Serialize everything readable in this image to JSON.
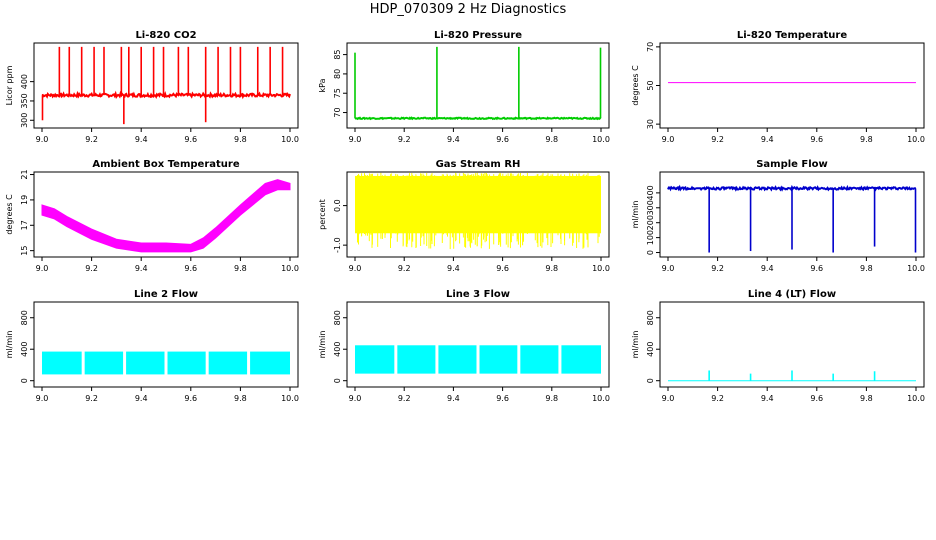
{
  "title": "HDP_070309  2 Hz Diagnostics",
  "chart_data": [
    {
      "type": "line",
      "title": "Li-820 CO2",
      "xlabel": "",
      "ylabel": "Licor ppm",
      "xlim": [
        9.0,
        10.0
      ],
      "ylim": [
        280,
        500
      ],
      "x_ticks": [
        "9.0",
        "9.2",
        "9.4",
        "9.6",
        "9.8",
        "10.0"
      ],
      "y_ticks": [
        "300",
        "350",
        "400"
      ],
      "color": "#ff0000",
      "series": [
        {
          "baseline": 365,
          "noise": 4,
          "spikes": [
            [
              9.07,
              490
            ],
            [
              9.11,
              490
            ],
            [
              9.16,
              490
            ],
            [
              9.21,
              490
            ],
            [
              9.25,
              490
            ],
            [
              9.32,
              490
            ],
            [
              9.35,
              490
            ],
            [
              9.4,
              490
            ],
            [
              9.45,
              490
            ],
            [
              9.49,
              490
            ],
            [
              9.55,
              490
            ],
            [
              9.59,
              490
            ],
            [
              9.66,
              490
            ],
            [
              9.71,
              490
            ],
            [
              9.76,
              490
            ],
            [
              9.8,
              490
            ],
            [
              9.87,
              490
            ],
            [
              9.92,
              490
            ],
            [
              9.97,
              490
            ],
            [
              9.002,
              300
            ],
            [
              9.33,
              290
            ],
            [
              9.66,
              295
            ]
          ]
        }
      ]
    },
    {
      "type": "line",
      "title": "Li-820 Pressure",
      "xlabel": "",
      "ylabel": "kPa",
      "xlim": [
        9.0,
        10.0
      ],
      "ylim": [
        66,
        88
      ],
      "x_ticks": [
        "9.0",
        "9.2",
        "9.4",
        "9.6",
        "9.8",
        "10.0"
      ],
      "y_ticks": [
        "70",
        "75",
        "80",
        "85"
      ],
      "color": "#00cc00",
      "series": [
        {
          "baseline": 68.5,
          "noise": 0.15,
          "spikes": [
            [
              9.0,
              85.5
            ],
            [
              9.333,
              87
            ],
            [
              9.666,
              87
            ],
            [
              9.998,
              86.8
            ]
          ]
        }
      ]
    },
    {
      "type": "line",
      "title": "Li-820 Temperature",
      "xlabel": "",
      "ylabel": "degrees C",
      "xlim": [
        9.0,
        10.0
      ],
      "ylim": [
        28,
        72
      ],
      "x_ticks": [
        "9.0",
        "9.2",
        "9.4",
        "9.6",
        "9.8",
        "10.0"
      ],
      "y_ticks": [
        "30",
        "50",
        "70"
      ],
      "color": "#ff00ff",
      "series": [
        {
          "baseline": 51.5,
          "noise": 0,
          "spikes": []
        }
      ]
    },
    {
      "type": "area",
      "title": "Ambient Box Temperature",
      "xlabel": "",
      "ylabel": "degrees C",
      "xlim": [
        9.0,
        10.0
      ],
      "ylim": [
        14.5,
        21.2
      ],
      "x_ticks": [
        "9.0",
        "9.2",
        "9.4",
        "9.6",
        "9.8",
        "10.0"
      ],
      "y_ticks": [
        "15",
        "17",
        "19",
        "21"
      ],
      "color": "#ff00ff",
      "series": [
        {
          "band": [
            [
              9.0,
              17.8,
              18.6
            ],
            [
              9.05,
              17.5,
              18.3
            ],
            [
              9.1,
              16.9,
              17.7
            ],
            [
              9.2,
              15.9,
              16.7
            ],
            [
              9.3,
              15.2,
              15.9
            ],
            [
              9.4,
              14.9,
              15.6
            ],
            [
              9.5,
              14.9,
              15.6
            ],
            [
              9.6,
              14.9,
              15.5
            ],
            [
              9.65,
              15.2,
              16.0
            ],
            [
              9.7,
              16.0,
              16.8
            ],
            [
              9.8,
              17.8,
              18.6
            ],
            [
              9.9,
              19.4,
              20.3
            ],
            [
              9.95,
              19.8,
              20.6
            ],
            [
              10.0,
              19.8,
              20.3
            ]
          ]
        }
      ]
    },
    {
      "type": "area",
      "title": "Gas Stream RH",
      "xlabel": "",
      "ylabel": "percent",
      "xlim": [
        9.0,
        10.0
      ],
      "ylim": [
        -1.3,
        0.85
      ],
      "x_ticks": [
        "9.0",
        "9.2",
        "9.4",
        "9.6",
        "9.8",
        "10.0"
      ],
      "y_ticks": [
        "-1.0",
        "0.0"
      ],
      "color": "#ffff00",
      "series": [
        {
          "band_const": [
            -0.7,
            0.75
          ],
          "dips_to": -1.1
        }
      ]
    },
    {
      "type": "line",
      "title": "Sample Flow",
      "xlabel": "",
      "ylabel": "ml/min",
      "xlim": [
        9.0,
        10.0
      ],
      "ylim": [
        -30,
        540
      ],
      "x_ticks": [
        "9.0",
        "9.2",
        "9.4",
        "9.6",
        "9.8",
        "10.0"
      ],
      "y_ticks": [
        "0",
        "100",
        "200",
        "300",
        "400"
      ],
      "color": "#0000cc",
      "series": [
        {
          "baseline": 430,
          "noise": 8,
          "spikes": [
            [
              9.166,
              0
            ],
            [
              9.333,
              10
            ],
            [
              9.5,
              20
            ],
            [
              9.666,
              0
            ],
            [
              9.833,
              40
            ],
            [
              9.998,
              0
            ]
          ]
        }
      ]
    },
    {
      "type": "area",
      "title": "Line 2 Flow",
      "xlabel": "",
      "ylabel": "ml/min",
      "xlim": [
        9.0,
        10.0
      ],
      "ylim": [
        -80,
        1000
      ],
      "x_ticks": [
        "9.0",
        "9.2",
        "9.4",
        "9.6",
        "9.8",
        "10.0"
      ],
      "y_ticks": [
        "0",
        "400",
        "800"
      ],
      "color": "#00ffff",
      "series": [
        {
          "band_const": [
            80,
            370
          ],
          "gaps": [
            9.166,
            9.333,
            9.5,
            9.666,
            9.833
          ]
        }
      ]
    },
    {
      "type": "area",
      "title": "Line 3 Flow",
      "xlabel": "",
      "ylabel": "ml/min",
      "xlim": [
        9.0,
        10.0
      ],
      "ylim": [
        -80,
        1000
      ],
      "x_ticks": [
        "9.0",
        "9.2",
        "9.4",
        "9.6",
        "9.8",
        "10.0"
      ],
      "y_ticks": [
        "0",
        "400",
        "800"
      ],
      "color": "#00ffff",
      "series": [
        {
          "band_const": [
            90,
            450
          ],
          "gaps": [
            9.166,
            9.333,
            9.5,
            9.666,
            9.833
          ]
        }
      ]
    },
    {
      "type": "line",
      "title": "Line 4 (LT) Flow",
      "xlabel": "",
      "ylabel": "ml/min",
      "xlim": [
        9.0,
        10.0
      ],
      "ylim": [
        -80,
        1000
      ],
      "x_ticks": [
        "9.0",
        "9.2",
        "9.4",
        "9.6",
        "9.8",
        "10.0"
      ],
      "y_ticks": [
        "0",
        "400",
        "800"
      ],
      "color": "#00ffff",
      "series": [
        {
          "baseline": 0,
          "noise": 0,
          "spikes": [
            [
              9.166,
              130
            ],
            [
              9.333,
              90
            ],
            [
              9.5,
              130
            ],
            [
              9.666,
              90
            ],
            [
              9.833,
              120
            ]
          ]
        }
      ]
    }
  ]
}
